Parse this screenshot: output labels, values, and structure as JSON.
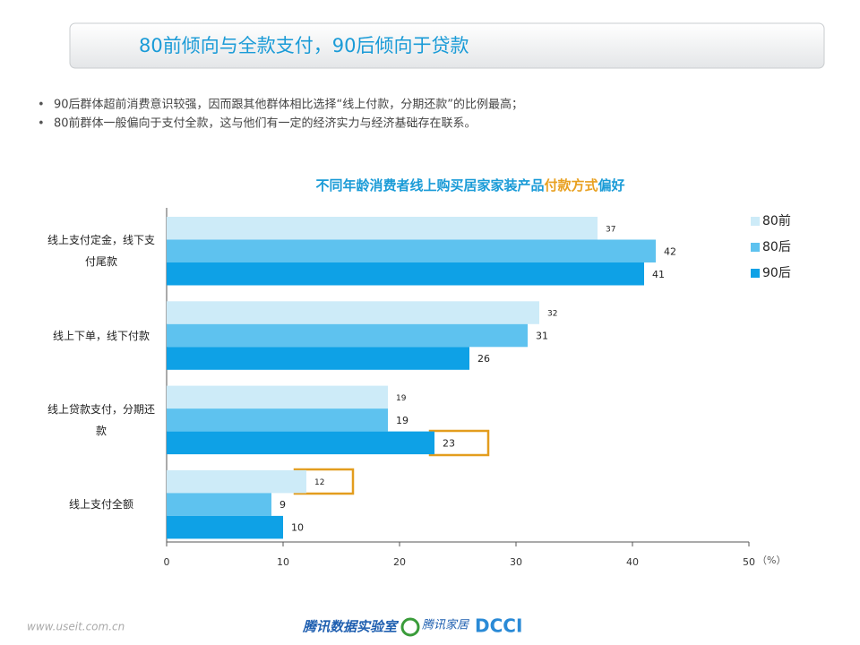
{
  "header": {
    "title": "80前倾向与全款支付，90后倾向于贷款"
  },
  "bullets": [
    "90后群体超前消费意识较强，因而跟其他群体相比选择“线上付款，分期还款”的比例最高；",
    "80前群体一般偏向于支付全款，这与他们有一定的经济实力与经济基础存在联系。"
  ],
  "chart_data": {
    "type": "barh",
    "title": [
      "不同年龄消费者线上购买居家家装产品",
      "付款方式",
      "偏好"
    ],
    "categories": [
      "线上支付定金，线下支付尾款",
      "线上下单，线下付款",
      "线上贷款支付，分期还款",
      "线上支付全额"
    ],
    "series": [
      {
        "name": "80前",
        "color": "#cdebf8",
        "values": [
          37,
          32,
          19,
          12
        ]
      },
      {
        "name": "80后",
        "color": "#5ec2ef",
        "values": [
          42,
          31,
          19,
          9
        ]
      },
      {
        "name": "90后",
        "color": "#0ea1e6",
        "values": [
          41,
          26,
          23,
          10
        ]
      }
    ],
    "xlim": [
      0,
      50
    ],
    "xticks": [
      0,
      10,
      20,
      30,
      40,
      50
    ],
    "x_unit": "（%）",
    "legend": "right"
  },
  "footer": {
    "watermark": "www.useit.com.cn",
    "logos": [
      "腾讯数据实验室",
      "腾讯家居",
      "DCCI"
    ]
  }
}
